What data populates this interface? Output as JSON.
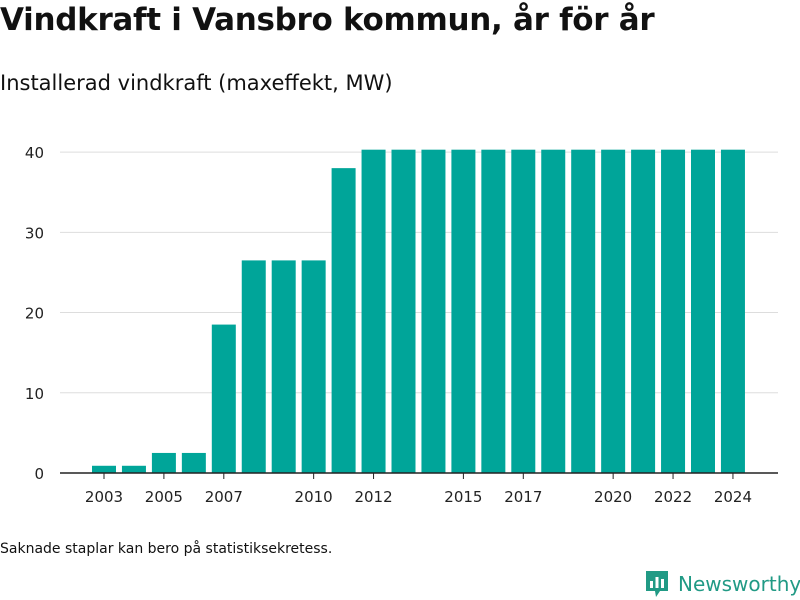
{
  "title": "Vindkraft i Vansbro kommun, år för år",
  "subtitle": "Installerad vindkraft (maxeffekt, MW)",
  "footnote": "Saknade staplar kan bero på statistiksekretess.",
  "brand": {
    "name": "Newsworthy",
    "icon": "newsworthy-logo-icon",
    "color": "#219a85"
  },
  "chart_data": {
    "type": "bar",
    "title": "Installerad vindkraft (maxeffekt, MW)",
    "xlabel": "",
    "ylabel": "",
    "bar_color": "#00a599",
    "grid": true,
    "ylim": [
      0,
      44
    ],
    "y_ticks": [
      0,
      10,
      20,
      30,
      40
    ],
    "x_tick_labels": [
      2003,
      2005,
      2007,
      2010,
      2012,
      2015,
      2017,
      2020,
      2022,
      2024
    ],
    "categories": [
      2003,
      2004,
      2005,
      2006,
      2007,
      2008,
      2009,
      2010,
      2011,
      2012,
      2013,
      2014,
      2015,
      2016,
      2017,
      2018,
      2019,
      2020,
      2021,
      2022,
      2023,
      2024
    ],
    "values": [
      0.9,
      0.9,
      2.5,
      2.5,
      18.5,
      26.5,
      26.5,
      26.5,
      38,
      40.3,
      40.3,
      40.3,
      40.3,
      40.3,
      40.3,
      40.3,
      40.3,
      40.3,
      40.3,
      40.3,
      40.3,
      40.3
    ]
  }
}
